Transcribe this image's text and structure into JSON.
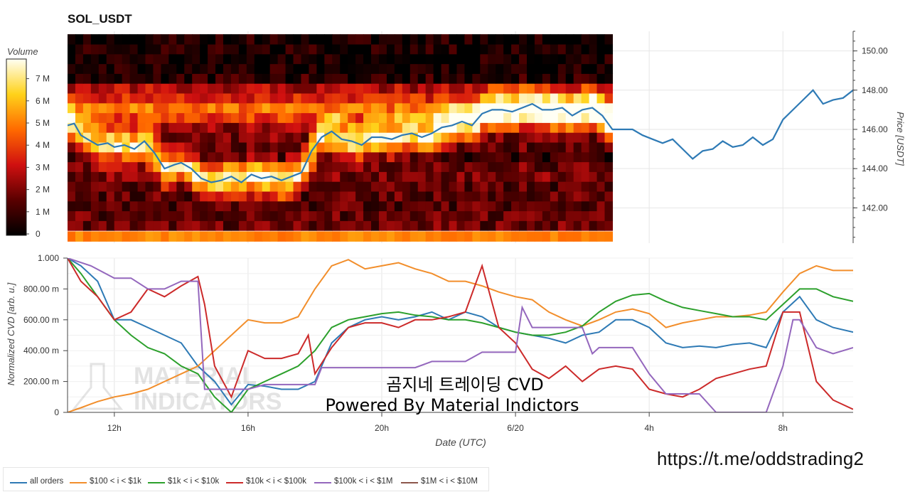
{
  "chart_data": [
    {
      "type": "heatmap",
      "title": "SOL_USDT",
      "colorbar": {
        "title": "Volume",
        "ticks": [
          "0",
          "1 M",
          "2 M",
          "3 M",
          "4 M",
          "5 M",
          "6 M",
          "7 M"
        ],
        "range": [
          0,
          8000000
        ]
      },
      "ylabel": "Price [USDT]",
      "y_ticks": [
        "142.00",
        "144.00",
        "146.00",
        "148.00",
        "150.00"
      ],
      "ylim": [
        140.2,
        151.0
      ],
      "price_line": {
        "x_hours": [
          10.6,
          10.8,
          11.0,
          11.2,
          11.5,
          11.8,
          12.0,
          12.3,
          12.6,
          12.9,
          13.2,
          13.5,
          13.8,
          14.0,
          14.3,
          14.6,
          14.9,
          15.2,
          15.5,
          15.8,
          16.1,
          16.4,
          16.7,
          17.0,
          17.3,
          17.6,
          17.9,
          18.2,
          18.5,
          18.8,
          19.1,
          19.4,
          19.7,
          20.0,
          20.3,
          20.6,
          20.9,
          21.2,
          21.5,
          21.8,
          22.1,
          22.4,
          22.7,
          23.0,
          23.3,
          23.6,
          23.9,
          24.2,
          24.5,
          24.8,
          25.1,
          25.4,
          25.7,
          26.0,
          26.3,
          26.6,
          26.9,
          27.2,
          27.5,
          27.8,
          28.1,
          28.4,
          28.7,
          29.0,
          29.3,
          29.6,
          29.9,
          30.2,
          30.5,
          30.8,
          31.1,
          31.4,
          31.7,
          32.0,
          32.3,
          32.6,
          32.9,
          33.2,
          33.5,
          33.8,
          34.1
        ],
        "price": [
          146.2,
          146.3,
          145.7,
          145.5,
          145.2,
          145.3,
          145.1,
          145.2,
          145.0,
          145.4,
          144.8,
          144.0,
          144.2,
          144.3,
          144.0,
          143.5,
          143.3,
          143.4,
          143.6,
          143.3,
          143.7,
          143.5,
          143.6,
          143.4,
          143.6,
          143.8,
          144.9,
          145.6,
          145.9,
          145.5,
          145.4,
          145.2,
          145.6,
          145.6,
          145.5,
          145.7,
          145.8,
          145.6,
          145.8,
          146.1,
          146.2,
          146.4,
          146.2,
          146.8,
          147.0,
          147.0,
          146.9,
          147.1,
          147.3,
          147.0,
          147.0,
          147.1,
          146.7,
          147.0,
          147.1,
          146.7,
          146.0,
          146.0,
          146.0,
          145.7,
          145.5,
          145.3,
          145.5,
          145.0,
          144.5,
          144.9,
          145.0,
          145.4,
          145.1,
          145.2,
          145.6,
          145.2,
          145.5,
          146.5,
          147.0,
          147.5,
          148.0,
          147.3,
          147.5,
          147.6,
          148.0
        ]
      },
      "heat_rows": [
        {
          "price_center": 140.55,
          "intensity": 0.55
        },
        {
          "price_center": 141.1,
          "intensity": 0.22
        },
        {
          "price_center": 141.6,
          "intensity": 0.2
        },
        {
          "price_center": 142.1,
          "intensity": 0.18
        },
        {
          "price_center": 142.6,
          "intensity": 0.19
        },
        {
          "price_center": 143.1,
          "intensity": 0.18
        },
        {
          "price_center": 143.6,
          "intensity": 0.25
        },
        {
          "price_center": 144.1,
          "intensity": 0.22
        },
        {
          "price_center": 144.6,
          "intensity": 0.1
        },
        {
          "price_center": 145.1,
          "intensity": 0.2
        },
        {
          "price_center": 145.6,
          "intensity": 0.25
        },
        {
          "price_center": 146.1,
          "intensity": 0.3
        },
        {
          "price_center": 146.6,
          "intensity": 0.5
        },
        {
          "price_center": 147.1,
          "intensity": 0.6
        },
        {
          "price_center": 147.6,
          "intensity": 0.45
        },
        {
          "price_center": 148.1,
          "intensity": 0.35
        },
        {
          "price_center": 148.6,
          "intensity": 0.1
        },
        {
          "price_center": 149.1,
          "intensity": 0.05
        },
        {
          "price_center": 149.6,
          "intensity": 0.04
        },
        {
          "price_center": 150.1,
          "intensity": 0.06
        },
        {
          "price_center": 150.6,
          "intensity": 0.05
        }
      ],
      "heat_x_range": [
        10.6,
        26.9
      ]
    },
    {
      "type": "line",
      "xlabel": "Date (UTC)",
      "ylabel": "Normalized CVD [arb. u.]",
      "x_ticks": [
        {
          "hour": 12,
          "label": "12h"
        },
        {
          "hour": 16,
          "label": "16h"
        },
        {
          "hour": 20,
          "label": "20h"
        },
        {
          "hour": 24,
          "label": "6/20"
        },
        {
          "hour": 28,
          "label": "4h"
        },
        {
          "hour": 32,
          "label": "8h"
        }
      ],
      "xlim": [
        10.6,
        34.1
      ],
      "y_ticks": [
        "0",
        "200.00 m",
        "400.00 m",
        "600.00 m",
        "800.00 m",
        "1.000"
      ],
      "ylim": [
        0,
        1.0
      ],
      "series": [
        {
          "name": "all orders",
          "color": "#2e7ab5",
          "x": [
            10.6,
            11.0,
            11.5,
            12.0,
            12.5,
            13.0,
            13.5,
            14.0,
            14.5,
            15.0,
            15.5,
            16.0,
            16.5,
            17.0,
            17.5,
            18.0,
            18.5,
            19.0,
            19.5,
            20.0,
            20.5,
            21.0,
            21.5,
            22.0,
            22.5,
            23.0,
            23.5,
            24.0,
            24.5,
            25.0,
            25.5,
            26.0,
            26.5,
            27.0,
            27.5,
            28.0,
            28.5,
            29.0,
            29.5,
            30.0,
            30.5,
            31.0,
            31.5,
            32.0,
            32.5,
            33.0,
            33.5,
            34.1
          ],
          "y": [
            1.0,
            0.95,
            0.85,
            0.6,
            0.6,
            0.55,
            0.5,
            0.45,
            0.3,
            0.2,
            0.05,
            0.18,
            0.17,
            0.15,
            0.15,
            0.2,
            0.45,
            0.55,
            0.6,
            0.62,
            0.6,
            0.62,
            0.65,
            0.6,
            0.65,
            0.62,
            0.55,
            0.52,
            0.5,
            0.48,
            0.45,
            0.5,
            0.52,
            0.6,
            0.6,
            0.55,
            0.45,
            0.42,
            0.43,
            0.42,
            0.44,
            0.45,
            0.42,
            0.65,
            0.75,
            0.6,
            0.55,
            0.52
          ]
        },
        {
          "name": "$100 < i < $1k",
          "color": "#f28e2b",
          "x": [
            10.6,
            11.0,
            11.5,
            12.0,
            12.5,
            13.0,
            13.5,
            14.0,
            14.5,
            15.0,
            15.5,
            16.0,
            16.5,
            17.0,
            17.5,
            18.0,
            18.5,
            19.0,
            19.5,
            20.0,
            20.5,
            21.0,
            21.5,
            22.0,
            22.5,
            23.0,
            23.5,
            24.0,
            24.5,
            25.0,
            25.5,
            26.0,
            26.5,
            27.0,
            27.5,
            28.0,
            28.5,
            29.0,
            29.5,
            30.0,
            30.5,
            31.0,
            31.5,
            32.0,
            32.5,
            33.0,
            33.5,
            34.1
          ],
          "y": [
            0.0,
            0.03,
            0.07,
            0.1,
            0.12,
            0.15,
            0.2,
            0.25,
            0.3,
            0.4,
            0.5,
            0.6,
            0.58,
            0.58,
            0.62,
            0.8,
            0.95,
            0.99,
            0.93,
            0.95,
            0.97,
            0.93,
            0.9,
            0.85,
            0.85,
            0.82,
            0.78,
            0.75,
            0.73,
            0.65,
            0.6,
            0.56,
            0.6,
            0.65,
            0.67,
            0.64,
            0.55,
            0.58,
            0.6,
            0.62,
            0.62,
            0.63,
            0.65,
            0.78,
            0.9,
            0.95,
            0.92,
            0.92
          ]
        },
        {
          "name": "$1k < i < $10k",
          "color": "#2ca02c",
          "x": [
            10.6,
            11.0,
            11.5,
            12.0,
            12.5,
            13.0,
            13.5,
            14.0,
            14.5,
            15.0,
            15.5,
            16.0,
            16.5,
            17.0,
            17.5,
            18.0,
            18.5,
            19.0,
            19.5,
            20.0,
            20.5,
            21.0,
            21.5,
            22.0,
            22.5,
            23.0,
            23.5,
            24.0,
            24.5,
            25.0,
            25.5,
            26.0,
            26.5,
            27.0,
            27.5,
            28.0,
            28.5,
            29.0,
            29.5,
            30.0,
            30.5,
            31.0,
            31.5,
            32.0,
            32.5,
            33.0,
            33.5,
            34.1
          ],
          "y": [
            1.0,
            0.9,
            0.75,
            0.6,
            0.5,
            0.42,
            0.38,
            0.3,
            0.25,
            0.1,
            0.0,
            0.15,
            0.2,
            0.25,
            0.3,
            0.4,
            0.55,
            0.6,
            0.62,
            0.64,
            0.65,
            0.63,
            0.62,
            0.6,
            0.6,
            0.58,
            0.55,
            0.52,
            0.5,
            0.5,
            0.52,
            0.56,
            0.65,
            0.72,
            0.76,
            0.77,
            0.72,
            0.68,
            0.66,
            0.64,
            0.62,
            0.62,
            0.6,
            0.7,
            0.8,
            0.8,
            0.75,
            0.72
          ]
        },
        {
          "name": "$10k < i < $100k",
          "color": "#cc2a2a",
          "x": [
            10.6,
            11.0,
            11.5,
            12.0,
            12.5,
            13.0,
            13.5,
            14.0,
            14.5,
            14.7,
            15.0,
            15.5,
            16.0,
            16.5,
            17.0,
            17.5,
            17.8,
            18.0,
            18.5,
            19.0,
            19.5,
            20.0,
            20.5,
            21.0,
            21.5,
            22.0,
            22.5,
            23.0,
            23.5,
            24.0,
            24.5,
            25.0,
            25.5,
            26.0,
            26.5,
            27.0,
            27.5,
            28.0,
            28.5,
            29.0,
            29.5,
            30.0,
            30.5,
            31.0,
            31.5,
            32.0,
            32.5,
            33.0,
            33.5,
            34.1
          ],
          "y": [
            1.0,
            0.85,
            0.75,
            0.6,
            0.65,
            0.8,
            0.75,
            0.82,
            0.88,
            0.7,
            0.3,
            0.1,
            0.4,
            0.35,
            0.35,
            0.38,
            0.5,
            0.25,
            0.42,
            0.55,
            0.58,
            0.58,
            0.55,
            0.6,
            0.6,
            0.62,
            0.65,
            0.95,
            0.55,
            0.45,
            0.28,
            0.22,
            0.3,
            0.2,
            0.28,
            0.3,
            0.28,
            0.15,
            0.12,
            0.1,
            0.15,
            0.22,
            0.25,
            0.28,
            0.3,
            0.65,
            0.65,
            0.2,
            0.08,
            0.02
          ]
        },
        {
          "name": "$100k < i < $1M",
          "color": "#9467bd",
          "x": [
            10.6,
            11.3,
            12.0,
            12.5,
            13.0,
            13.5,
            14.0,
            14.5,
            14.7,
            15.0,
            15.5,
            16.0,
            16.5,
            17.0,
            17.5,
            18.0,
            18.2,
            18.5,
            19.0,
            19.5,
            20.0,
            20.5,
            21.0,
            21.5,
            22.0,
            22.5,
            23.0,
            23.5,
            24.0,
            24.2,
            24.5,
            25.0,
            25.5,
            26.0,
            26.3,
            26.5,
            27.0,
            27.5,
            28.0,
            28.5,
            29.0,
            29.5,
            30.0,
            30.5,
            31.0,
            31.5,
            32.0,
            32.3,
            32.5,
            33.0,
            33.5,
            34.1
          ],
          "y": [
            1.0,
            0.95,
            0.87,
            0.87,
            0.8,
            0.8,
            0.85,
            0.85,
            0.15,
            0.15,
            0.15,
            0.15,
            0.18,
            0.18,
            0.18,
            0.18,
            0.29,
            0.29,
            0.29,
            0.29,
            0.29,
            0.29,
            0.29,
            0.33,
            0.33,
            0.33,
            0.39,
            0.39,
            0.39,
            0.68,
            0.55,
            0.55,
            0.55,
            0.55,
            0.38,
            0.42,
            0.42,
            0.42,
            0.25,
            0.12,
            0.12,
            0.12,
            0.0,
            0.0,
            0.0,
            0.0,
            0.3,
            0.6,
            0.6,
            0.42,
            0.38,
            0.42
          ]
        },
        {
          "name": "$1M < i < $10M",
          "color": "#8c564b",
          "x": [],
          "y": []
        }
      ]
    }
  ],
  "watermark": {
    "line1": "MATERIAL",
    "line2": "INDICATORS"
  },
  "overlay": {
    "line1": "곰지네 트레이딩 CVD",
    "line2": "Powered By Material Indictors"
  },
  "url": "https://t.me/oddstrading2",
  "colors": {
    "blue": "#2e7ab5",
    "orange": "#f28e2b",
    "green": "#2ca02c",
    "red": "#cc2a2a",
    "purple": "#9467bd",
    "brown": "#8c564b"
  }
}
